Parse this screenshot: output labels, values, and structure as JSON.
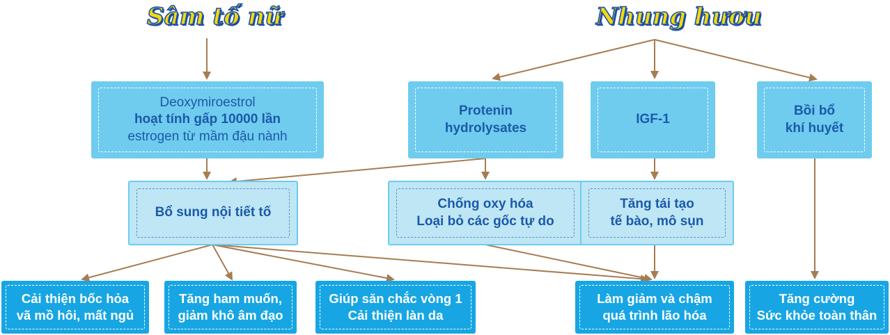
{
  "titles": {
    "sam_to_nu": "Sâm tố nữ",
    "nhung_huou": "Nhung hươu"
  },
  "boxes": {
    "deoxy": {
      "line1": "Deoxymiroestrol",
      "line2": "hoạt tính gấp 10000 lần",
      "line3": "estrogen từ mầm đậu nành"
    },
    "protenin": {
      "line1": "Protenin",
      "line2": "hydrolysates"
    },
    "igf": {
      "line1": "IGF-1"
    },
    "boi_bo": {
      "line1": "Bồi bổ",
      "line2": "khí huyết"
    },
    "bo_sung": {
      "line1": "Bổ sung nội tiết tố"
    },
    "chong_oxy": {
      "line1": "Chống oxy hóa",
      "line2": "Loại bỏ các gốc tự do"
    },
    "tang_tai_tao": {
      "line1": "Tăng tái tạo",
      "line2": "tế bào, mô sụn"
    },
    "cai_thien": {
      "line1": "Cải thiện bốc hỏa",
      "line2": "vã mồ hôi, mất ngủ"
    },
    "tang_ham_muon": {
      "line1": "Tăng ham muốn,",
      "line2": "giảm khô âm đạo"
    },
    "giup_san": {
      "line1": "Giúp săn chắc vòng 1",
      "line2": "Cải thiện làn da"
    },
    "lam_giam": {
      "line1": "Làm giảm và chậm",
      "line2": "quá trình lão hóa"
    },
    "tang_cuong": {
      "line1": "Tăng cường",
      "line2": "Sức khỏe toàn thân"
    }
  },
  "colors": {
    "arrow": "#a67c52",
    "title_fill": "#f5d90a",
    "title_stroke": "#1a4fa8",
    "box_mid": "#6fccef",
    "box_light": "#bfe6f5",
    "box_dark": "#17a6e3",
    "text_blue": "#1b5aa8"
  }
}
